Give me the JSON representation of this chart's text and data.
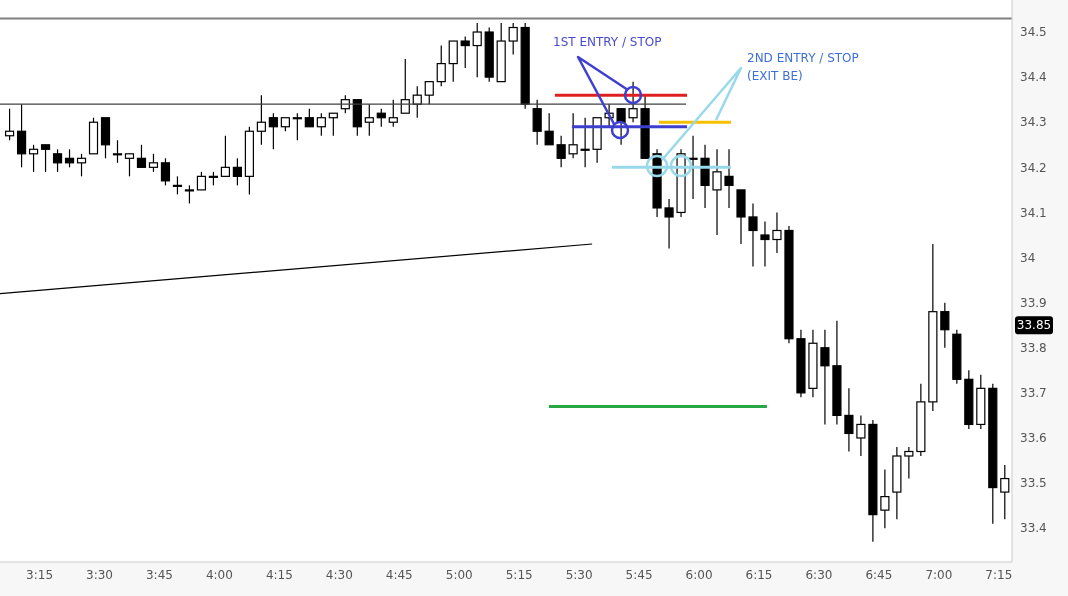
{
  "chart_data": {
    "type": "candlestick",
    "color": "#000000",
    "x": [
      3.125,
      3.175,
      3.225,
      3.275,
      3.325,
      3.375,
      3.425,
      3.475,
      3.525,
      3.575,
      3.625,
      3.675,
      3.725,
      3.775,
      3.825,
      3.875,
      3.925,
      3.975,
      4.025,
      4.075,
      4.125,
      4.175,
      4.225,
      4.275,
      4.325,
      4.375,
      4.425,
      4.475,
      4.525,
      4.575,
      4.625,
      4.675,
      4.725,
      4.775,
      4.825,
      4.875,
      4.925,
      4.975,
      5.025,
      5.075,
      5.125,
      5.175,
      5.225,
      5.275,
      5.325,
      5.375,
      5.425,
      5.475,
      5.525,
      5.575,
      5.625,
      5.675,
      5.725,
      5.775,
      5.825,
      5.875,
      5.925,
      5.975,
      6.025,
      6.075,
      6.125,
      6.175,
      6.225,
      6.275,
      6.325,
      6.375,
      6.425,
      6.475,
      6.525,
      6.575,
      6.625,
      6.675,
      6.725,
      6.775,
      6.825,
      6.875,
      6.925,
      6.975,
      7.025,
      7.075,
      7.125,
      7.175,
      7.225,
      7.275
    ],
    "ohlc": [
      [
        34.27,
        34.33,
        34.26,
        34.28
      ],
      [
        34.28,
        34.34,
        34.2,
        34.23
      ],
      [
        34.23,
        34.25,
        34.19,
        34.24
      ],
      [
        34.25,
        34.25,
        34.19,
        34.24
      ],
      [
        34.23,
        34.24,
        34.19,
        34.21
      ],
      [
        34.22,
        34.24,
        34.2,
        34.21
      ],
      [
        34.21,
        34.23,
        34.18,
        34.22
      ],
      [
        34.23,
        34.31,
        34.23,
        34.3
      ],
      [
        34.31,
        34.31,
        34.22,
        34.25
      ],
      [
        34.23,
        34.26,
        34.21,
        34.23
      ],
      [
        34.22,
        34.23,
        34.18,
        34.23
      ],
      [
        34.22,
        34.25,
        34.2,
        34.2
      ],
      [
        34.2,
        34.23,
        34.19,
        34.21
      ],
      [
        34.21,
        34.22,
        34.16,
        34.17
      ],
      [
        34.16,
        34.18,
        34.14,
        34.16
      ],
      [
        34.15,
        34.16,
        34.12,
        34.15
      ],
      [
        34.15,
        34.19,
        34.15,
        34.18
      ],
      [
        34.18,
        34.19,
        34.16,
        34.18
      ],
      [
        34.18,
        34.27,
        34.18,
        34.2
      ],
      [
        34.2,
        34.22,
        34.16,
        34.18
      ],
      [
        34.18,
        34.29,
        34.14,
        34.28
      ],
      [
        34.28,
        34.36,
        34.25,
        34.3
      ],
      [
        34.31,
        34.32,
        34.24,
        34.29
      ],
      [
        34.29,
        34.31,
        34.28,
        34.31
      ],
      [
        34.31,
        34.32,
        34.26,
        34.31
      ],
      [
        34.31,
        34.33,
        34.29,
        34.29
      ],
      [
        34.29,
        34.32,
        34.27,
        34.31
      ],
      [
        34.31,
        34.32,
        34.27,
        34.32
      ],
      [
        34.33,
        34.36,
        34.32,
        34.35
      ],
      [
        34.35,
        34.35,
        34.27,
        34.29
      ],
      [
        34.3,
        34.34,
        34.27,
        34.31
      ],
      [
        34.32,
        34.33,
        34.29,
        34.31
      ],
      [
        34.3,
        34.35,
        34.29,
        34.31
      ],
      [
        34.32,
        34.44,
        34.32,
        34.35
      ],
      [
        34.34,
        34.38,
        34.31,
        34.36
      ],
      [
        34.36,
        34.39,
        34.34,
        34.39
      ],
      [
        34.39,
        34.47,
        34.38,
        34.43
      ],
      [
        34.43,
        34.48,
        34.39,
        34.48
      ],
      [
        34.48,
        34.49,
        34.42,
        34.47
      ],
      [
        34.47,
        34.52,
        34.4,
        34.5
      ],
      [
        34.5,
        34.51,
        34.39,
        34.4
      ],
      [
        34.39,
        34.52,
        34.39,
        34.48
      ],
      [
        34.48,
        34.52,
        34.45,
        34.51
      ],
      [
        34.51,
        34.52,
        34.33,
        34.34
      ],
      [
        34.33,
        34.35,
        34.25,
        34.28
      ],
      [
        34.28,
        34.32,
        34.25,
        34.25
      ],
      [
        34.25,
        34.27,
        34.2,
        34.22
      ],
      [
        34.23,
        34.32,
        34.22,
        34.25
      ],
      [
        34.24,
        34.31,
        34.2,
        34.24
      ],
      [
        34.24,
        34.31,
        34.21,
        34.31
      ],
      [
        34.31,
        34.34,
        34.29,
        34.32
      ],
      [
        34.33,
        34.33,
        34.25,
        34.3
      ],
      [
        34.31,
        34.39,
        34.3,
        34.33
      ],
      [
        34.33,
        34.36,
        34.22,
        34.22
      ],
      [
        34.23,
        34.24,
        34.09,
        34.11
      ],
      [
        34.11,
        34.13,
        34.02,
        34.09
      ],
      [
        34.1,
        34.24,
        34.09,
        34.23
      ],
      [
        34.22,
        34.27,
        34.13,
        34.22
      ],
      [
        34.22,
        34.25,
        34.11,
        34.16
      ],
      [
        34.15,
        34.24,
        34.05,
        34.19
      ],
      [
        34.18,
        34.24,
        34.11,
        34.16
      ],
      [
        34.15,
        34.15,
        34.03,
        34.09
      ],
      [
        34.09,
        34.12,
        33.98,
        34.06
      ],
      [
        34.05,
        34.08,
        33.98,
        34.04
      ],
      [
        34.04,
        34.1,
        34.01,
        34.06
      ],
      [
        34.06,
        34.07,
        33.81,
        33.82
      ],
      [
        33.82,
        33.84,
        33.69,
        33.7
      ],
      [
        33.71,
        33.84,
        33.69,
        33.81
      ],
      [
        33.8,
        33.84,
        33.63,
        33.76
      ],
      [
        33.76,
        33.86,
        33.63,
        33.65
      ],
      [
        33.65,
        33.71,
        33.57,
        33.61
      ],
      [
        33.6,
        33.65,
        33.56,
        33.63
      ],
      [
        33.63,
        33.64,
        33.37,
        33.43
      ],
      [
        33.44,
        33.53,
        33.4,
        33.47
      ],
      [
        33.48,
        33.58,
        33.42,
        33.56
      ],
      [
        33.56,
        33.58,
        33.51,
        33.57
      ],
      [
        33.57,
        33.72,
        33.56,
        33.68
      ],
      [
        33.68,
        34.03,
        33.66,
        33.88
      ],
      [
        33.88,
        33.9,
        33.8,
        33.84
      ],
      [
        33.83,
        33.84,
        33.72,
        33.73
      ],
      [
        33.73,
        33.75,
        33.62,
        33.63
      ],
      [
        33.63,
        33.74,
        33.62,
        33.71
      ],
      [
        33.71,
        33.72,
        33.41,
        33.49
      ],
      [
        33.48,
        33.54,
        33.42,
        33.51
      ]
    ],
    "series": [
      {
        "type": "line",
        "color": "#404040",
        "x": [
          3.085,
          5.946
        ],
        "values": [
          34.34,
          34.34
        ]
      },
      {
        "type": "line",
        "color": "#000000",
        "x": [
          3.085,
          5.554
        ],
        "values": [
          33.92,
          34.03
        ]
      },
      {
        "type": "line",
        "color": "#e02020",
        "x": [
          5.399,
          5.95
        ],
        "values": [
          34.36,
          34.36
        ]
      },
      {
        "type": "line",
        "color": "#3f3fcf",
        "x": [
          5.47,
          5.95
        ],
        "values": [
          34.29,
          34.29
        ]
      },
      {
        "type": "line",
        "color": "#f5c000",
        "x": [
          5.833,
          6.133
        ],
        "values": [
          34.3,
          34.3
        ]
      },
      {
        "type": "line",
        "color": "#99d9ea",
        "x": [
          5.637,
          6.133
        ],
        "values": [
          34.2,
          34.2
        ]
      },
      {
        "type": "line",
        "color": "#28a745",
        "x": [
          5.374,
          6.283
        ],
        "values": [
          33.67,
          33.67
        ]
      }
    ],
    "ref_lines": [
      {
        "axis": "y",
        "value": 34.53,
        "color": "#808080"
      }
    ],
    "annotations": [
      "1ST ENTRY / STOP",
      "2ND ENTRY / STOP\n(EXIT BE)",
      "33.85"
    ],
    "xlim": [
      3.085,
      7.305
    ],
    "xticks": [
      {
        "value": 3.25,
        "label": "3:15"
      },
      {
        "value": 3.5,
        "label": "3:30"
      },
      {
        "value": 3.75,
        "label": "3:45"
      },
      {
        "value": 4,
        "label": "4:00"
      },
      {
        "value": 4.25,
        "label": "4:15"
      },
      {
        "value": 4.5,
        "label": "4:30"
      },
      {
        "value": 4.75,
        "label": "4:45"
      },
      {
        "value": 5,
        "label": "5:00"
      },
      {
        "value": 5.25,
        "label": "5:15"
      },
      {
        "value": 5.5,
        "label": "5:30"
      },
      {
        "value": 5.75,
        "label": "5:45"
      },
      {
        "value": 6,
        "label": "6:00"
      },
      {
        "value": 6.25,
        "label": "6:15"
      },
      {
        "value": 6.5,
        "label": "6:30"
      },
      {
        "value": 6.75,
        "label": "6:45"
      },
      {
        "value": 7,
        "label": "7:00"
      },
      {
        "value": 7.25,
        "label": "7:15"
      }
    ],
    "ylim": [
      33.325,
      34.571
    ],
    "yticks": [
      33.4,
      33.5,
      33.6,
      33.7,
      33.8,
      33.9,
      34,
      34.1,
      34.2,
      34.3,
      34.4,
      34.5
    ]
  }
}
